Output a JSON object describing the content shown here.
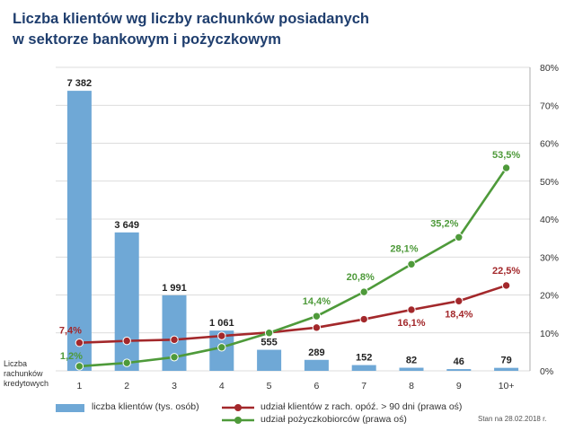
{
  "title": "Liczba klientów wg liczby rachunków posiadanych\nw sektorze bankowym i pożyczkowym",
  "source_note": "Stan na 28.02.2018 r.",
  "colors": {
    "bars": "#6fa8d6",
    "red_series": "#a3282b",
    "green_series": "#4e9a3a",
    "title": "#1f3e6e",
    "grid": "#d0d0d0"
  },
  "chart_data": {
    "type": "bar",
    "title": "Liczba klientów wg liczby rachunków posiadanych w sektorze bankowym i pożyczkowym",
    "xlabel": "Liczba rachunków kredytowych",
    "categories": [
      "1",
      "2",
      "3",
      "4",
      "5",
      "6",
      "7",
      "8",
      "9",
      "10+"
    ],
    "bars": {
      "name": "liczba klientów (tys. osób)",
      "values": [
        7382,
        3649,
        1991,
        1061,
        555,
        289,
        152,
        82,
        46,
        79
      ],
      "labels": [
        "7 382",
        "3 649",
        "1 991",
        "1 061",
        "555",
        "289",
        "152",
        "82",
        "46",
        "79"
      ]
    },
    "left_axis": {
      "ylim": [
        0,
        8000
      ]
    },
    "right_axis": {
      "ylim": [
        0,
        80
      ],
      "ticks": [
        "0%",
        "10%",
        "20%",
        "30%",
        "40%",
        "50%",
        "60%",
        "70%",
        "80%"
      ]
    },
    "series": [
      {
        "name": "udział klientów z rach. opóź. > 90 dni (prawa oś)",
        "color": "#a3282b",
        "values": [
          7.4,
          7.9,
          8.2,
          9.2,
          10.1,
          11.4,
          13.6,
          16.1,
          18.4,
          22.5
        ],
        "labels": {
          "0": "7,4%",
          "7": "16,1%",
          "8": "18,4%",
          "9": "22,5%"
        }
      },
      {
        "name": "udział pożyczkobiorców (prawa oś)",
        "color": "#4e9a3a",
        "values": [
          1.2,
          2.1,
          3.6,
          6.2,
          10.0,
          14.4,
          20.8,
          28.1,
          35.2,
          53.5
        ],
        "labels": {
          "0": "1,2%",
          "5": "14,4%",
          "6": "20,8%",
          "7": "28,1%",
          "8": "35,2%",
          "9": "53,5%"
        }
      }
    ],
    "grid": true,
    "legend_position": "bottom"
  }
}
